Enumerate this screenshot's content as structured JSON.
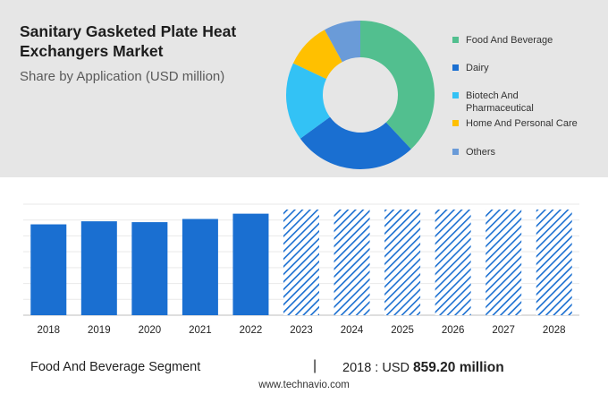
{
  "header": {
    "title": "Sanitary Gasketed Plate Heat Exchangers Market",
    "subtitle": "Share by Application (USD million)"
  },
  "chart_data": [
    {
      "type": "pie",
      "subtype": "donut",
      "categories": [
        "Food And Beverage",
        "Dairy",
        "Biotech And Pharmaceutical",
        "Home And Personal Care",
        "Others"
      ],
      "values": [
        38,
        27,
        17,
        10,
        8
      ],
      "colors": [
        "#52bf8f",
        "#1a6fd1",
        "#33c2f5",
        "#ffc000",
        "#6a9bd8"
      ],
      "legend_position": "right"
    },
    {
      "type": "bar",
      "categories": [
        "2018",
        "2019",
        "2020",
        "2021",
        "2022",
        "2023",
        "2024",
        "2025",
        "2026",
        "2027",
        "2028"
      ],
      "values": [
        859.2,
        888,
        880,
        910,
        960,
        null,
        null,
        null,
        null,
        null,
        null
      ],
      "forecast_years": [
        "2023",
        "2024",
        "2025",
        "2026",
        "2027",
        "2028"
      ],
      "colors": {
        "actual": "#1a6fd1",
        "forecast": "#1a6fd1"
      },
      "grid": true
    }
  ],
  "footer": {
    "segment": "Food And Beverage Segment",
    "divider": "|",
    "value_prefix": "2018 : USD",
    "value": "859.20 million",
    "source": "www.technavio.com"
  }
}
